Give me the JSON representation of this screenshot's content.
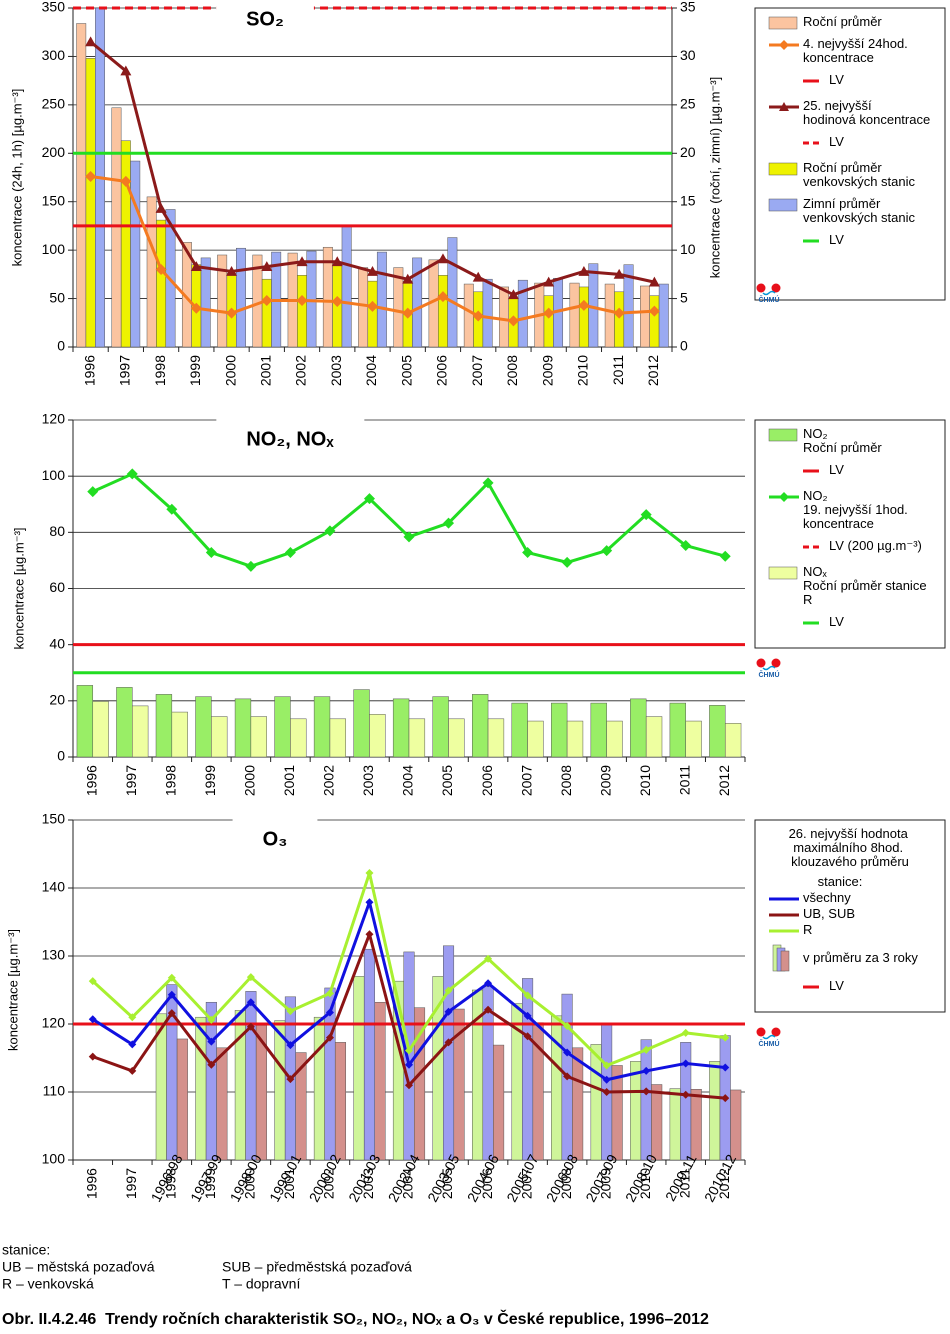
{
  "chart_data": [
    {
      "type": "combo",
      "title": "SO₂",
      "ylabel": "koncentrace (24h, 1h) [µg.m⁻³]",
      "y2label": "koncentrace (roční, zimní) [µg.m⁻³]",
      "categories": [
        "1996",
        "1997",
        "1998",
        "1999",
        "2000",
        "2001",
        "2002",
        "2003",
        "2004",
        "2005",
        "2006",
        "2007",
        "2008",
        "2009",
        "2010",
        "2011",
        "2012"
      ],
      "ylim": [
        0,
        350
      ],
      "yticks": [
        0,
        50,
        100,
        150,
        200,
        250,
        300,
        350
      ],
      "y2lim": [
        0,
        35
      ],
      "y2ticks": [
        0,
        5,
        10,
        15,
        20,
        25,
        30,
        35
      ],
      "grid": true,
      "series": [
        {
          "name": "Roční průměr",
          "kind": "bar",
          "axis": "y2",
          "color": "#fbc4a0",
          "values": [
            33.4,
            24.7,
            15.5,
            10.8,
            9.5,
            9.5,
            9.7,
            10.3,
            8.2,
            8.2,
            9.0,
            6.5,
            6.2,
            6.6,
            6.6,
            6.5,
            6.3
          ]
        },
        {
          "name": "4. nejvyšší 24hod. koncentrace",
          "kind": "line",
          "marker": "diamond",
          "color": "#f47a20",
          "values": [
            176,
            171,
            80,
            40,
            35,
            48,
            48,
            47,
            42,
            35,
            52,
            32,
            27,
            35,
            43,
            35,
            37
          ]
        },
        {
          "name": "LV",
          "kind": "hline",
          "color": "#e8101a",
          "value": 125
        },
        {
          "name": "25. nejvyšší hodinová koncentrace",
          "kind": "line",
          "marker": "triangle",
          "color": "#8b1a1a",
          "values": [
            315,
            285,
            143,
            83,
            78,
            83,
            88,
            88,
            78,
            70,
            91,
            72,
            54,
            67,
            78,
            75,
            67
          ]
        },
        {
          "name": "LV",
          "kind": "hline",
          "dash": true,
          "color": "#e8101a",
          "value": 350
        },
        {
          "name": "Roční průměr venkovských stanic",
          "kind": "bar",
          "axis": "y2",
          "color": "#eef200",
          "values": [
            29.8,
            21.3,
            13.1,
            8.5,
            7.6,
            7.0,
            7.4,
            8.6,
            6.8,
            6.8,
            7.4,
            5.7,
            5.0,
            5.3,
            6.2,
            5.7,
            5.3
          ]
        },
        {
          "name": "Zimní průměr venkovských stanic",
          "kind": "bar",
          "axis": "y2",
          "color": "#9aaaf2",
          "values": [
            35,
            19.2,
            14.2,
            9.2,
            10.2,
            9.8,
            9.9,
            12.6,
            9.8,
            9.2,
            11.3,
            7.0,
            6.9,
            7.1,
            8.6,
            8.5,
            6.5
          ]
        },
        {
          "name": "LV",
          "kind": "hline",
          "axis": "y2",
          "color": "#22dd22",
          "value": 20
        }
      ],
      "logo": "ČHMÚ"
    },
    {
      "type": "combo",
      "title": "NO₂, NOₓ",
      "ylabel": "koncentrace [µg.m⁻³]",
      "categories": [
        "1996",
        "1997",
        "1998",
        "1999",
        "2000",
        "2001",
        "2002",
        "2003",
        "2004",
        "2005",
        "2006",
        "2007",
        "2008",
        "2009",
        "2010",
        "2011",
        "2012"
      ],
      "ylim": [
        0,
        120
      ],
      "yticks": [
        0,
        20,
        40,
        60,
        80,
        100,
        120
      ],
      "grid": true,
      "series": [
        {
          "name": "NO₂ Roční průměr",
          "kind": "bar",
          "color": "#99ee66",
          "values": [
            25.5,
            24.8,
            22.3,
            21.5,
            20.7,
            21.5,
            21.5,
            24.0,
            20.7,
            21.5,
            22.3,
            19.2,
            19.2,
            19.2,
            20.7,
            19.2,
            18.4
          ]
        },
        {
          "name": "LV",
          "kind": "hline",
          "color": "#e8101a",
          "value": 40
        },
        {
          "name": "NO₂ 19. nejvyšší 1hod. koncentrace",
          "kind": "line",
          "marker": "diamond",
          "color": "#22dd22",
          "values": [
            94.5,
            100.8,
            88.2,
            72.8,
            67.9,
            72.8,
            80.5,
            92.0,
            78.4,
            83.3,
            97.6,
            72.8,
            69.3,
            73.5,
            86.3,
            75.3,
            71.5
          ]
        },
        {
          "name": "LV (200 µg.m⁻³)",
          "kind": "hline",
          "dash": true,
          "color": "#e8101a",
          "value": 200
        },
        {
          "name": "NOₓ Roční průměr stanice R",
          "kind": "bar",
          "color": "#eeffa0",
          "values": [
            19.8,
            18.2,
            16.0,
            14.4,
            14.4,
            13.6,
            13.6,
            15.2,
            13.6,
            13.6,
            13.6,
            12.8,
            12.8,
            12.8,
            14.4,
            12.8,
            12.0
          ]
        },
        {
          "name": "LV",
          "kind": "hline",
          "color": "#22dd22",
          "value": 30
        }
      ],
      "logo": "ČHMÚ"
    },
    {
      "type": "combo",
      "title": "O₃",
      "ylabel": "koncentrace [µg.m⁻³]",
      "categories": [
        "1996",
        "1997",
        "1998",
        "1999",
        "2000",
        "2001",
        "2002",
        "2003",
        "2004",
        "2005",
        "2006",
        "2007",
        "2008",
        "2009",
        "2010",
        "2011",
        "2012"
      ],
      "bar_labels": [
        null,
        null,
        "1996-98",
        "1997-99",
        "1998-00",
        "1999-01",
        "2000-02",
        "2001-03",
        "2002-04",
        "2003-05",
        "2004-06",
        "2005-07",
        "2006-08",
        "2007-09",
        "2008-10",
        "2009-11",
        "2010-12"
      ],
      "ylim": [
        100,
        150
      ],
      "yticks": [
        100,
        110,
        120,
        130,
        140,
        150
      ],
      "grid": true,
      "legend_title": "26. nejvyšší hodnota maximálního 8hod. klouzavého průměru",
      "legend_subtitle": "stanice:",
      "bars_legend": "v průměru za 3 roky",
      "series": [
        {
          "name": "všechny",
          "kind": "line",
          "marker": "diamond",
          "color": "#1010e0",
          "values": [
            120.7,
            117.0,
            124.3,
            117.4,
            123.2,
            116.9,
            121.7,
            137.9,
            114.0,
            121.8,
            126.0,
            121.2,
            115.8,
            111.8,
            113.1,
            114.2,
            113.6
          ]
        },
        {
          "name": "UB, SUB",
          "kind": "line",
          "marker": "diamond",
          "color": "#8b1414",
          "values": [
            115.2,
            113.1,
            121.6,
            114.0,
            119.6,
            111.9,
            118.0,
            133.2,
            111.0,
            117.3,
            122.1,
            118.2,
            112.3,
            110.0,
            110.1,
            109.6,
            109.1
          ]
        },
        {
          "name": "R",
          "kind": "line",
          "marker": "diamond",
          "color": "#a8f030",
          "values": [
            126.3,
            121.0,
            126.8,
            120.6,
            126.9,
            121.9,
            124.5,
            142.2,
            116.1,
            124.9,
            129.6,
            124.2,
            119.7,
            113.9,
            116.2,
            118.7,
            118.0
          ]
        },
        {
          "kind": "bar",
          "color": "#cff59a",
          "values": [
            null,
            null,
            121.5,
            121,
            122,
            120.5,
            121,
            127,
            126.3,
            127,
            125,
            123,
            121.2,
            117,
            114.5,
            110.5,
            114.5
          ]
        },
        {
          "kind": "bar",
          "color": "#9c9cf0",
          "values": [
            null,
            null,
            125.8,
            123.2,
            124.8,
            124,
            125.3,
            131,
            130.6,
            131.5,
            125.5,
            126.7,
            124.4,
            120,
            117.7,
            117.3,
            118.3
          ]
        },
        {
          "kind": "bar",
          "color": "#d4908c",
          "values": [
            null,
            null,
            117.8,
            116.5,
            119.8,
            115.8,
            117.3,
            123.2,
            122.4,
            122.2,
            116.9,
            120.2,
            116.5,
            113.9,
            111.1,
            110.4,
            110.3
          ]
        },
        {
          "name": "LV",
          "kind": "hline",
          "color": "#e8101a",
          "value": 120
        }
      ],
      "logo": "ČHMÚ"
    }
  ],
  "notes": {
    "heading": "stanice:",
    "items": [
      "UB – městská pozaďová",
      "SUB – předměstská pozaďová",
      "R – venkovská",
      "T – dopravní"
    ]
  },
  "caption": "Obr. II.4.2.46  Trendy ročních charakteristik SO₂, NO₂, NOₓ a O₃ v České republice, 1996–2012"
}
